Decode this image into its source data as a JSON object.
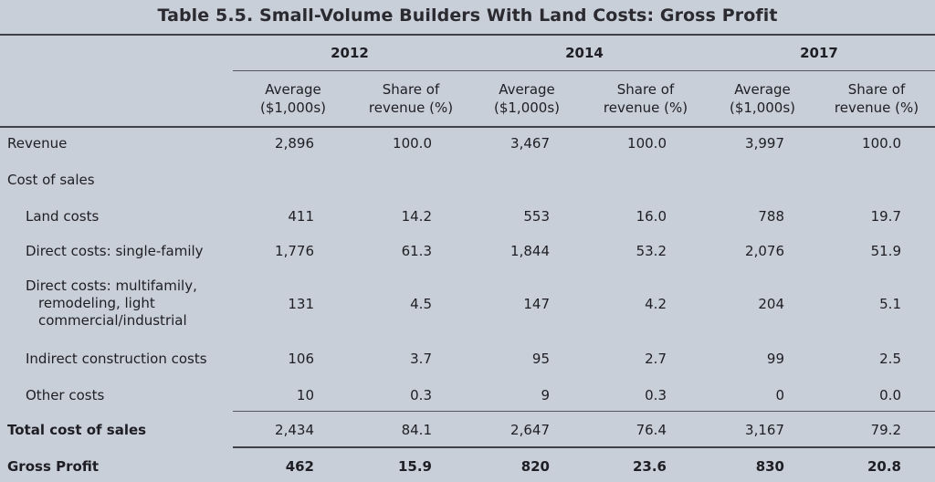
{
  "title": "Table 5.5. Small-Volume Builders With Land Costs: Gross Profit",
  "years": [
    "2012",
    "2014",
    "2017"
  ],
  "col_headers": {
    "average": [
      "Average",
      "($1,000s)"
    ],
    "share": [
      "Share of",
      "revenue (%)"
    ]
  },
  "rows": [
    {
      "label": "Revenue",
      "bold": false,
      "values": [
        "2,896",
        "100.0",
        "3,467",
        "100.0",
        "3,997",
        "100.0"
      ]
    },
    {
      "label": "Cost of sales",
      "bold": false,
      "values": []
    },
    {
      "label": "Land costs",
      "bold": false,
      "values": [
        "411",
        "14.2",
        "553",
        "16.0",
        "788",
        "19.7"
      ]
    },
    {
      "label": "Direct costs: single-family",
      "bold": false,
      "values": [
        "1,776",
        "61.3",
        "1,844",
        "53.2",
        "2,076",
        "51.9"
      ]
    },
    {
      "label_lines": [
        "Direct costs: multifamily,",
        "remodeling, light",
        "commercial/industrial"
      ],
      "bold": false,
      "values": [
        "131",
        "4.5",
        "147",
        "4.2",
        "204",
        "5.1"
      ]
    },
    {
      "label": "Indirect construction costs",
      "bold": false,
      "values": [
        "106",
        "3.7",
        "95",
        "2.7",
        "99",
        "2.5"
      ]
    },
    {
      "label": "Other costs",
      "bold": false,
      "values": [
        "10",
        "0.3",
        "9",
        "0.3",
        "0",
        "0.0"
      ]
    },
    {
      "label": "Total cost of sales",
      "bold": true,
      "values": [
        "2,434",
        "84.1",
        "2,647",
        "76.4",
        "3,167",
        "79.2"
      ]
    },
    {
      "label": "Gross Profit",
      "bold": true,
      "values": [
        "462",
        "15.9",
        "820",
        "23.6",
        "830",
        "20.8"
      ]
    }
  ]
}
